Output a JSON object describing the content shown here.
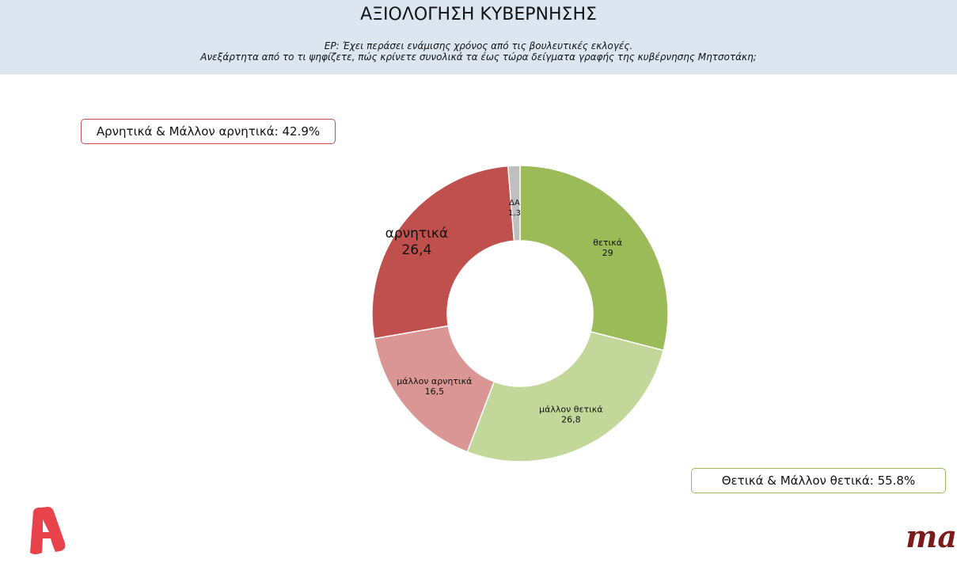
{
  "header": {
    "title": "ΑΞΙΟΛΟΓΗΣΗ ΚΥΒΕΡΝΗΣΗΣ",
    "question_line1": "ΕΡ: Έχει περάσει ενάμισης χρόνος  από τις βουλευτικές εκλογές.",
    "question_line2": "Ανεξάρτητα από το τι ψηφίζετε, πώς κρίνετε συνολικά τα έως τώρα δείγματα γραφής της κυβέρνησης Μητσοτάκη;"
  },
  "summary": {
    "negative": "Αρνητικά & Μάλλον αρνητικά: 42.9%",
    "positive": "Θετικά & Μάλλον θετικά: 55.8%"
  },
  "logos": {
    "left": "A",
    "right": "ma"
  },
  "chart_data": {
    "type": "pie",
    "variant": "donut",
    "title": "ΑΞΙΟΛΟΓΗΣΗ ΚΥΒΕΡΝΗΣΗΣ",
    "start": "top-clockwise",
    "slices": [
      {
        "label": "θετικά",
        "value": 29,
        "value_label": "29",
        "color": "#9bbb59"
      },
      {
        "label": "μάλλον θετικά",
        "value": 26.8,
        "value_label": "26,8",
        "color": "#c4d79b"
      },
      {
        "label": "μάλλον αρνητικά",
        "value": 16.5,
        "value_label": "16,5",
        "color": "#da9694"
      },
      {
        "label": "αρνητικά",
        "value": 26.4,
        "value_label": "26,4",
        "color": "#c0504d"
      },
      {
        "label": "ΔΑ",
        "value": 1.3,
        "value_label": "1,3",
        "color": "#bfbfbf"
      }
    ]
  }
}
